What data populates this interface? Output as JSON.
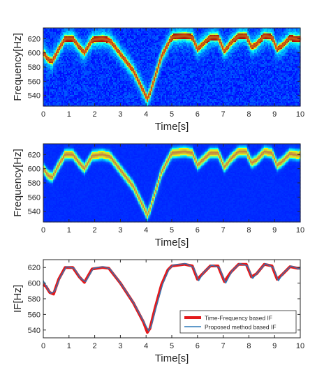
{
  "colors": {
    "spectrogram_background": "#1f2b9c",
    "ridge_peak": "#d81c1c",
    "tf_if_line": "#e31a1c",
    "proposed_if_line": "#2c79b8",
    "axis": "#262626"
  },
  "chart_data": [
    {
      "type": "heatmap",
      "title": "",
      "xlabel": "Time[s]",
      "ylabel": "Frequency[Hz]",
      "xlim": [
        0,
        10
      ],
      "ylim": [
        525,
        635
      ],
      "xticks": [
        "0",
        "1",
        "2",
        "3",
        "4",
        "5",
        "6",
        "7",
        "8",
        "9",
        "10"
      ],
      "yticks": [
        "540",
        "560",
        "580",
        "600",
        "620"
      ],
      "colormap": "jet",
      "ridge_time": [
        0,
        0.2,
        0.35,
        0.6,
        0.85,
        1.15,
        1.4,
        1.6,
        1.9,
        2.3,
        2.6,
        3.5,
        4.05,
        4.15,
        4.6,
        5.0,
        5.5,
        5.8,
        6.0,
        6.2,
        6.5,
        6.8,
        7.05,
        7.3,
        7.6,
        7.9,
        8.1,
        8.3,
        8.6,
        8.9,
        9.1,
        9.3,
        9.6,
        9.9,
        10
      ],
      "ridge_freq": [
        600,
        590,
        588,
        605,
        620,
        620,
        608,
        600,
        618,
        620,
        617,
        575,
        535,
        543,
        595,
        622,
        624,
        622,
        605,
        612,
        622,
        622,
        602,
        614,
        624,
        624,
        608,
        612,
        624,
        622,
        605,
        610,
        621,
        619,
        620
      ]
    },
    {
      "type": "heatmap",
      "title": "",
      "xlabel": "Time[s]",
      "ylabel": "Frequency[Hz]",
      "xlim": [
        0,
        10
      ],
      "ylim": [
        525,
        635
      ],
      "xticks": [
        "0",
        "1",
        "2",
        "3",
        "4",
        "5",
        "6",
        "7",
        "8",
        "9",
        "10"
      ],
      "yticks": [
        "540",
        "560",
        "580",
        "600",
        "620"
      ],
      "colormap": "jet",
      "ridge_time": [
        0,
        0.2,
        0.35,
        0.6,
        0.85,
        1.15,
        1.4,
        1.6,
        1.9,
        2.3,
        2.6,
        3.5,
        4.05,
        4.15,
        4.6,
        5.0,
        5.5,
        5.8,
        6.0,
        6.2,
        6.5,
        6.8,
        7.05,
        7.3,
        7.6,
        7.9,
        8.1,
        8.3,
        8.6,
        8.9,
        9.1,
        9.3,
        9.6,
        9.9,
        10
      ],
      "ridge_freq": [
        600,
        590,
        588,
        605,
        620,
        620,
        608,
        600,
        618,
        620,
        617,
        575,
        535,
        543,
        595,
        622,
        624,
        622,
        605,
        612,
        622,
        622,
        602,
        614,
        624,
        624,
        608,
        612,
        624,
        622,
        605,
        610,
        621,
        619,
        620
      ]
    },
    {
      "type": "line",
      "title": "",
      "xlabel": "Time[s]",
      "ylabel": "IF[Hz]",
      "xlim": [
        0,
        10
      ],
      "ylim": [
        530,
        630
      ],
      "xticks": [
        "0",
        "1",
        "2",
        "3",
        "4",
        "5",
        "6",
        "7",
        "8",
        "9",
        "10"
      ],
      "yticks": [
        "540",
        "560",
        "580",
        "600",
        "620"
      ],
      "legend": "bottom-right",
      "series": [
        {
          "name": "Time-Frequency based IF",
          "color": "#e31a1c",
          "x": [
            0,
            0.1,
            0.25,
            0.4,
            0.6,
            0.85,
            1.15,
            1.4,
            1.6,
            1.9,
            2.3,
            2.55,
            3.0,
            3.5,
            3.9,
            4.05,
            4.15,
            4.35,
            4.6,
            4.85,
            5.0,
            5.5,
            5.8,
            6.0,
            6.2,
            6.5,
            6.8,
            7.05,
            7.3,
            7.6,
            7.9,
            8.1,
            8.3,
            8.6,
            8.9,
            9.1,
            9.3,
            9.6,
            9.9,
            10
          ],
          "y": [
            598,
            596,
            588,
            586,
            605,
            620,
            620,
            608,
            601,
            618,
            620,
            619,
            600,
            575,
            550,
            537,
            542,
            568,
            598,
            617,
            622,
            624,
            622,
            605,
            612,
            622,
            622,
            602,
            614,
            624,
            624,
            608,
            612,
            624,
            622,
            605,
            611,
            621,
            619,
            619
          ]
        },
        {
          "name": "Proposed method based IF",
          "color": "#2c79b8",
          "x": [
            0,
            0.05,
            0.2,
            0.3,
            0.45,
            0.65,
            0.9,
            1.2,
            1.45,
            1.65,
            1.95,
            2.35,
            2.6,
            3.05,
            3.55,
            3.95,
            4.1,
            4.2,
            4.4,
            4.65,
            4.9,
            5.05,
            5.55,
            5.85,
            6.05,
            6.25,
            6.55,
            6.85,
            7.1,
            7.35,
            7.65,
            7.95,
            8.15,
            8.35,
            8.65,
            8.95,
            9.15,
            9.35,
            9.65,
            9.95,
            10
          ],
          "y": [
            603,
            600,
            591,
            587,
            590,
            607,
            621,
            619,
            606,
            602,
            619,
            621,
            618,
            598,
            573,
            548,
            539,
            545,
            570,
            599,
            618,
            623,
            625,
            620,
            603,
            614,
            623,
            620,
            600,
            616,
            625,
            622,
            606,
            614,
            625,
            620,
            603,
            613,
            622,
            618,
            621
          ]
        }
      ]
    }
  ]
}
